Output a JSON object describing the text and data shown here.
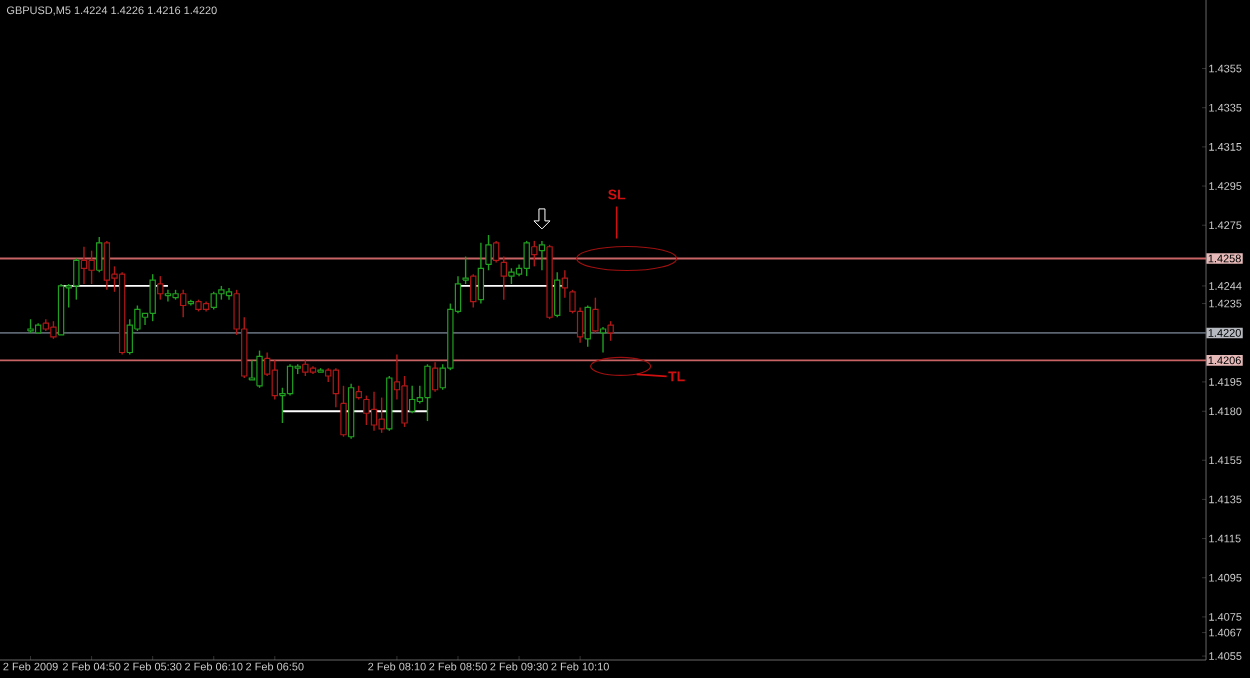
{
  "chart_data": {
    "type": "candlestick",
    "title": "GBPUSD,M5  1.4224 1.4226 1.4216 1.4220",
    "x": [
      "2009-02-02T04:10",
      "2009-02-02T04:15",
      "2009-02-02T04:20",
      "2009-02-02T04:25",
      "2009-02-02T04:30",
      "2009-02-02T04:35",
      "2009-02-02T04:40",
      "2009-02-02T04:45",
      "2009-02-02T04:50",
      "2009-02-02T04:55",
      "2009-02-02T05:00",
      "2009-02-02T05:05",
      "2009-02-02T05:10",
      "2009-02-02T05:15",
      "2009-02-02T05:20",
      "2009-02-02T05:25",
      "2009-02-02T05:30",
      "2009-02-02T05:35",
      "2009-02-02T05:40",
      "2009-02-02T05:45",
      "2009-02-02T05:50",
      "2009-02-02T05:55",
      "2009-02-02T06:00",
      "2009-02-02T06:05",
      "2009-02-02T06:10",
      "2009-02-02T06:15",
      "2009-02-02T06:20",
      "2009-02-02T06:25",
      "2009-02-02T06:30",
      "2009-02-02T06:35",
      "2009-02-02T06:40",
      "2009-02-02T06:45",
      "2009-02-02T06:50",
      "2009-02-02T06:55",
      "2009-02-02T07:00",
      "2009-02-02T07:05",
      "2009-02-02T07:10",
      "2009-02-02T07:15",
      "2009-02-02T07:20",
      "2009-02-02T07:25",
      "2009-02-02T07:30",
      "2009-02-02T07:35",
      "2009-02-02T07:40",
      "2009-02-02T07:45",
      "2009-02-02T07:50",
      "2009-02-02T07:55",
      "2009-02-02T08:00",
      "2009-02-02T08:05",
      "2009-02-02T08:10",
      "2009-02-02T08:15",
      "2009-02-02T08:20",
      "2009-02-02T08:25",
      "2009-02-02T08:30",
      "2009-02-02T08:35",
      "2009-02-02T08:40",
      "2009-02-02T08:45",
      "2009-02-02T08:50",
      "2009-02-02T08:55",
      "2009-02-02T09:00",
      "2009-02-02T09:05",
      "2009-02-02T09:10",
      "2009-02-02T09:15",
      "2009-02-02T09:20",
      "2009-02-02T09:25",
      "2009-02-02T09:30",
      "2009-02-02T09:35",
      "2009-02-02T09:40",
      "2009-02-02T09:45",
      "2009-02-02T09:50",
      "2009-02-02T09:55",
      "2009-02-02T10:00",
      "2009-02-02T10:05",
      "2009-02-02T10:10",
      "2009-02-02T10:15",
      "2009-02-02T10:20",
      "2009-02-02T10:25",
      "2009-02-02T10:30"
    ],
    "ohlc": [
      [
        1.4221,
        1.4227,
        1.422,
        1.4222
      ],
      [
        1.422,
        1.4225,
        1.422,
        1.4224
      ],
      [
        1.4225,
        1.4227,
        1.4221,
        1.4222
      ],
      [
        1.4223,
        1.4226,
        1.4217,
        1.4218
      ],
      [
        1.4219,
        1.4245,
        1.4219,
        1.4244
      ],
      [
        1.4243,
        1.4245,
        1.4233,
        1.4244
      ],
      [
        1.4244,
        1.4258,
        1.4237,
        1.4257
      ],
      [
        1.4257,
        1.4264,
        1.4245,
        1.4253
      ],
      [
        1.4257,
        1.4262,
        1.4245,
        1.4252
      ],
      [
        1.4252,
        1.4269,
        1.4251,
        1.4266
      ],
      [
        1.4266,
        1.4267,
        1.4242,
        1.4247
      ],
      [
        1.425,
        1.4254,
        1.4241,
        1.4248
      ],
      [
        1.425,
        1.4251,
        1.4209,
        1.421
      ],
      [
        1.421,
        1.4227,
        1.4209,
        1.4224
      ],
      [
        1.4222,
        1.4234,
        1.4221,
        1.4232
      ],
      [
        1.4228,
        1.423,
        1.4224,
        1.423
      ],
      [
        1.423,
        1.425,
        1.4226,
        1.4247
      ],
      [
        1.4245,
        1.4249,
        1.4237,
        1.424
      ],
      [
        1.4239,
        1.4242,
        1.4236,
        1.424
      ],
      [
        1.4238,
        1.4242,
        1.4237,
        1.424
      ],
      [
        1.424,
        1.4242,
        1.4228,
        1.4234
      ],
      [
        1.4235,
        1.4237,
        1.4234,
        1.4236
      ],
      [
        1.4236,
        1.4237,
        1.4231,
        1.4232
      ],
      [
        1.4235,
        1.4236,
        1.4231,
        1.4232
      ],
      [
        1.4233,
        1.4241,
        1.4232,
        1.424
      ],
      [
        1.424,
        1.4244,
        1.4237,
        1.4242
      ],
      [
        1.4239,
        1.4243,
        1.4237,
        1.4241
      ],
      [
        1.424,
        1.4242,
        1.4219,
        1.4222
      ],
      [
        1.4222,
        1.4228,
        1.4197,
        1.4198
      ],
      [
        1.4196,
        1.4206,
        1.4196,
        1.4197
      ],
      [
        1.4193,
        1.4211,
        1.4192,
        1.4208
      ],
      [
        1.4207,
        1.421,
        1.4198,
        1.4199
      ],
      [
        1.4201,
        1.4206,
        1.4186,
        1.4188
      ],
      [
        1.4188,
        1.4192,
        1.4174,
        1.4189
      ],
      [
        1.4189,
        1.4204,
        1.4188,
        1.4203
      ],
      [
        1.4202,
        1.4204,
        1.4199,
        1.4203
      ],
      [
        1.4204,
        1.4206,
        1.4198,
        1.42
      ],
      [
        1.4202,
        1.4203,
        1.4199,
        1.42
      ],
      [
        1.42,
        1.4202,
        1.42,
        1.4201
      ],
      [
        1.4201,
        1.4202,
        1.4195,
        1.4198
      ],
      [
        1.4201,
        1.4202,
        1.4182,
        1.4189
      ],
      [
        1.4184,
        1.4193,
        1.4167,
        1.4168
      ],
      [
        1.4167,
        1.4194,
        1.4166,
        1.4192
      ],
      [
        1.419,
        1.4193,
        1.4186,
        1.4187
      ],
      [
        1.4186,
        1.4188,
        1.4173,
        1.4179
      ],
      [
        1.4181,
        1.419,
        1.417,
        1.4173
      ],
      [
        1.4176,
        1.4187,
        1.4169,
        1.4171
      ],
      [
        1.4171,
        1.4198,
        1.417,
        1.4197
      ],
      [
        1.4195,
        1.4209,
        1.4186,
        1.4191
      ],
      [
        1.4193,
        1.4198,
        1.4172,
        1.4174
      ],
      [
        1.418,
        1.4193,
        1.4179,
        1.4186
      ],
      [
        1.4185,
        1.4193,
        1.4184,
        1.4187
      ],
      [
        1.4187,
        1.4204,
        1.4175,
        1.4203
      ],
      [
        1.4202,
        1.4205,
        1.419,
        1.4191
      ],
      [
        1.4192,
        1.4204,
        1.4191,
        1.4202
      ],
      [
        1.4202,
        1.4235,
        1.4201,
        1.4232
      ],
      [
        1.4231,
        1.4249,
        1.423,
        1.4245
      ],
      [
        1.4247,
        1.4259,
        1.4245,
        1.4248
      ],
      [
        1.4249,
        1.425,
        1.4233,
        1.4236
      ],
      [
        1.4237,
        1.4266,
        1.4235,
        1.4253
      ],
      [
        1.4255,
        1.427,
        1.4252,
        1.4265
      ],
      [
        1.4266,
        1.4267,
        1.4256,
        1.4257
      ],
      [
        1.4256,
        1.4259,
        1.4237,
        1.4249
      ],
      [
        1.4249,
        1.4253,
        1.4245,
        1.4251
      ],
      [
        1.425,
        1.4255,
        1.4249,
        1.4253
      ],
      [
        1.4253,
        1.4267,
        1.4249,
        1.4266
      ],
      [
        1.4264,
        1.4267,
        1.4254,
        1.426
      ],
      [
        1.4262,
        1.4267,
        1.4252,
        1.4265
      ],
      [
        1.4264,
        1.4265,
        1.4227,
        1.4228
      ],
      [
        1.4229,
        1.4251,
        1.4228,
        1.4247
      ],
      [
        1.4248,
        1.4252,
        1.4238,
        1.4243
      ],
      [
        1.4241,
        1.4242,
        1.423,
        1.4231
      ],
      [
        1.4231,
        1.4233,
        1.4215,
        1.4218
      ],
      [
        1.4217,
        1.4234,
        1.4213,
        1.4233
      ],
      [
        1.4232,
        1.4238,
        1.422,
        1.4221
      ],
      [
        1.422,
        1.4223,
        1.421,
        1.4222
      ],
      [
        1.4224,
        1.4226,
        1.4216,
        1.422
      ]
    ],
    "colors": [
      "#20a020",
      "#20a020",
      "#b01818",
      "#b01818",
      "#20a020",
      "#20a020",
      "#20a020",
      "#b01818",
      "#b01818",
      "#20a020",
      "#b01818",
      "#b01818",
      "#b01818",
      "#20a020",
      "#20a020",
      "#20a020",
      "#20a020",
      "#b01818",
      "#20a020",
      "#20a020",
      "#b01818",
      "#20a020",
      "#b01818",
      "#b01818",
      "#20a020",
      "#20a020",
      "#20a020",
      "#b01818",
      "#b01818",
      "#20a020",
      "#20a020",
      "#b01818",
      "#b01818",
      "#20a020",
      "#20a020",
      "#20a020",
      "#b01818",
      "#b01818",
      "#20a020",
      "#b01818",
      "#b01818",
      "#b01818",
      "#20a020",
      "#b01818",
      "#b01818",
      "#b01818",
      "#b01818",
      "#20a020",
      "#b01818",
      "#b01818",
      "#20a020",
      "#20a020",
      "#20a020",
      "#b01818",
      "#20a020",
      "#20a020",
      "#20a020",
      "#20a020",
      "#b01818",
      "#20a020",
      "#20a020",
      "#b01818",
      "#b01818",
      "#20a020",
      "#20a020",
      "#20a020",
      "#b01818",
      "#20a020",
      "#b01818",
      "#20a020",
      "#b01818",
      "#b01818",
      "#b01818",
      "#20a020",
      "#b01818",
      "#20a020",
      "#b01818"
    ],
    "series": [
      {
        "type": "line",
        "color": "#ffffff",
        "x": [
          "2009-02-02T04:30",
          "2009-02-02T05:40"
        ],
        "values": [
          1.4244,
          1.4244
        ]
      },
      {
        "type": "line",
        "color": "#ffffff",
        "x": [
          "2009-02-02T08:50",
          "2009-02-02T10:00"
        ],
        "values": [
          1.4244,
          1.4244
        ]
      },
      {
        "type": "line",
        "color": "#ffffff",
        "x": [
          "2009-02-02T06:55",
          "2009-02-02T08:30"
        ],
        "values": [
          1.418,
          1.418
        ]
      }
    ],
    "xlim": [
      "2009-02-02T03:50",
      "2009-02-02T17:00"
    ],
    "xticks": [
      {
        "value": "2009-02-02T04:10",
        "label": "2 Feb 2009"
      },
      {
        "value": "2009-02-02T04:50",
        "label": "2 Feb 04:50"
      },
      {
        "value": "2009-02-02T05:30",
        "label": "2 Feb 05:30"
      },
      {
        "value": "2009-02-02T06:10",
        "label": "2 Feb 06:10"
      },
      {
        "value": "2009-02-02T06:50",
        "label": "2 Feb 06:50"
      },
      {
        "value": "2009-02-02T08:10",
        "label": "2 Feb 08:10"
      },
      {
        "value": "2009-02-02T08:50",
        "label": "2 Feb 08:50"
      },
      {
        "value": "2009-02-02T09:30",
        "label": "2 Feb 09:30"
      },
      {
        "value": "2009-02-02T10:10",
        "label": "2 Feb 10:10"
      }
    ],
    "ylim": [
      1.4053,
      1.439
    ],
    "yticks": [
      {
        "value": 1.4355,
        "label": "1.4355"
      },
      {
        "value": 1.4335,
        "label": "1.4335"
      },
      {
        "value": 1.4315,
        "label": "1.4315"
      },
      {
        "value": 1.4295,
        "label": "1.4295"
      },
      {
        "value": 1.4275,
        "label": "1.4275"
      },
      {
        "value": 1.4244,
        "label": "1.4244"
      },
      {
        "value": 1.4235,
        "label": "1.4235"
      },
      {
        "value": 1.4195,
        "label": "1.4195"
      },
      {
        "value": 1.418,
        "label": "1.4180"
      },
      {
        "value": 1.4155,
        "label": "1.4155"
      },
      {
        "value": 1.4135,
        "label": "1.4135"
      },
      {
        "value": 1.4115,
        "label": "1.4115"
      },
      {
        "value": 1.4095,
        "label": "1.4095"
      },
      {
        "value": 1.4075,
        "label": "1.4075"
      },
      {
        "value": 1.4067,
        "label": "1.4067"
      },
      {
        "value": 1.4055,
        "label": "1.4055"
      }
    ],
    "ref_lines": [
      {
        "axis": "y",
        "value": 1.4258,
        "label": "1.4258",
        "color": "#c86464"
      },
      {
        "axis": "y",
        "value": 1.422,
        "label": "1.4220",
        "color": "#5c6470"
      },
      {
        "axis": "y",
        "value": 1.4206,
        "label": "1.4206",
        "color": "#c86464"
      }
    ],
    "annotations": [
      "SL",
      "TL"
    ]
  }
}
